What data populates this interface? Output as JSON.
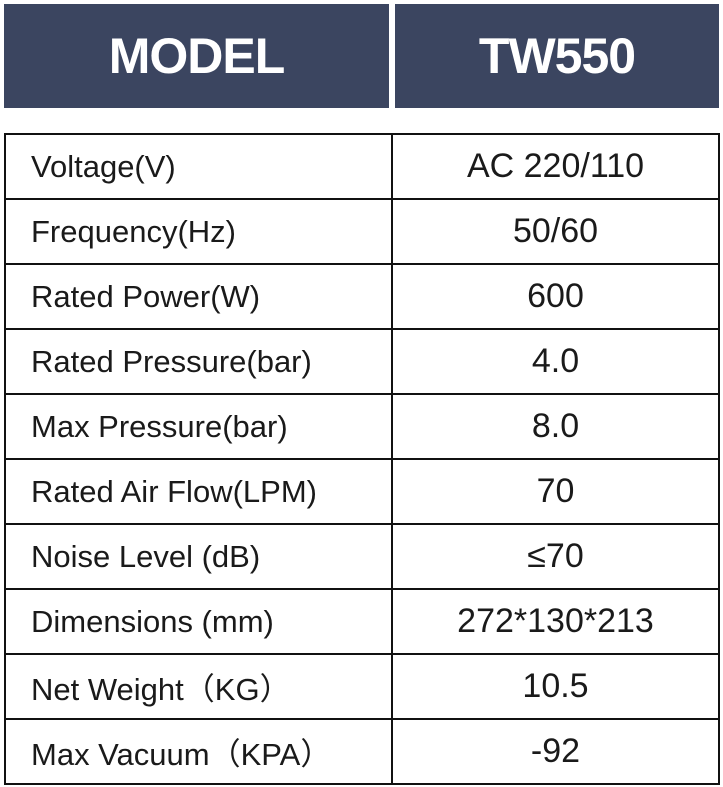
{
  "header": {
    "cells": [
      "MODEL",
      "TW550"
    ]
  },
  "table": {
    "rows": [
      [
        "Voltage(V)",
        "AC 220/110"
      ],
      [
        "Frequency(Hz)",
        "50/60"
      ],
      [
        "Rated Power(W)",
        "600"
      ],
      [
        "Rated Pressure(bar)",
        "4.0"
      ],
      [
        "Max Pressure(bar)",
        "8.0"
      ],
      [
        "Rated Air Flow(LPM)",
        "70"
      ],
      [
        "Noise Level (dB)",
        "≤70"
      ],
      [
        "Dimensions (mm)",
        "272*130*213"
      ],
      [
        "Net Weight（KG）",
        "10.5"
      ],
      [
        "Max Vacuum（KPA）",
        "-92"
      ]
    ]
  }
}
